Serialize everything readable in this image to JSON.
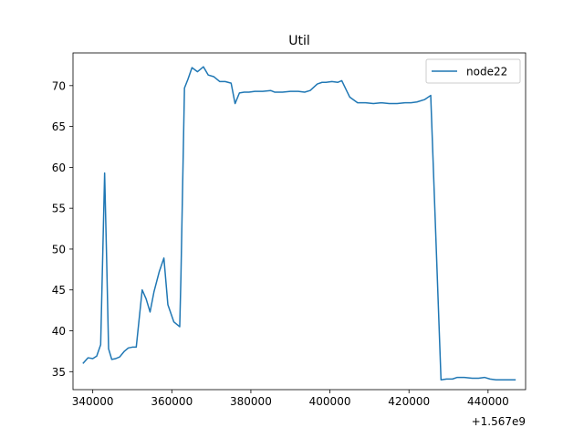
{
  "chart_data": {
    "type": "line",
    "title": "Util",
    "xlabel": "",
    "ylabel": "",
    "x_offset_label": "+1.567e9",
    "xlim": [
      335000,
      449500
    ],
    "ylim": [
      32.8,
      74.0
    ],
    "xticks": [
      340000,
      360000,
      380000,
      400000,
      420000,
      440000
    ],
    "xtick_labels": [
      "340000",
      "360000",
      "380000",
      "400000",
      "420000",
      "440000"
    ],
    "yticks": [
      35,
      40,
      45,
      50,
      55,
      60,
      65,
      70
    ],
    "ytick_labels": [
      "35",
      "40",
      "45",
      "50",
      "55",
      "60",
      "65",
      "70"
    ],
    "grid": false,
    "legend_position": "top-right",
    "colors": {
      "series": "#1f77b4"
    },
    "series": [
      {
        "name": "node22",
        "x": [
          337500,
          338800,
          340000,
          341000,
          342000,
          343000,
          343500,
          344000,
          344800,
          345800,
          346800,
          348000,
          349000,
          350000,
          351000,
          352500,
          353500,
          354500,
          355500,
          356800,
          358000,
          359000,
          360500,
          362000,
          362300,
          363200,
          364100,
          365100,
          366500,
          368000,
          369200,
          370600,
          372100,
          373500,
          375000,
          376000,
          377100,
          378300,
          379500,
          381000,
          383000,
          385000,
          386000,
          388000,
          390000,
          392000,
          393600,
          395000,
          396800,
          398000,
          399000,
          400500,
          402000,
          403000,
          405000,
          407000,
          409000,
          411000,
          413000,
          415000,
          417000,
          419000,
          420500,
          422000,
          424000,
          425500,
          428100,
          429500,
          431000,
          432200,
          434000,
          436000,
          437600,
          439100,
          440500,
          442000,
          444000,
          447000
        ],
        "y": [
          36.0,
          36.7,
          36.6,
          36.9,
          38.3,
          59.3,
          49.0,
          37.8,
          36.5,
          36.6,
          36.8,
          37.5,
          37.9,
          38.0,
          38.0,
          45.0,
          43.9,
          42.3,
          44.8,
          47.2,
          48.9,
          43.2,
          41.1,
          40.5,
          46.5,
          69.7,
          70.8,
          72.2,
          71.7,
          72.3,
          71.3,
          71.1,
          70.5,
          70.5,
          70.3,
          67.8,
          69.1,
          69.2,
          69.2,
          69.3,
          69.3,
          69.4,
          69.2,
          69.2,
          69.3,
          69.3,
          69.2,
          69.4,
          70.2,
          70.4,
          70.4,
          70.5,
          70.4,
          70.6,
          68.6,
          67.9,
          67.9,
          67.8,
          67.9,
          67.8,
          67.8,
          67.9,
          67.9,
          68.0,
          68.3,
          68.8,
          34.0,
          34.1,
          34.1,
          34.3,
          34.3,
          34.2,
          34.2,
          34.3,
          34.1,
          34.0,
          34.0,
          34.0
        ]
      }
    ]
  }
}
